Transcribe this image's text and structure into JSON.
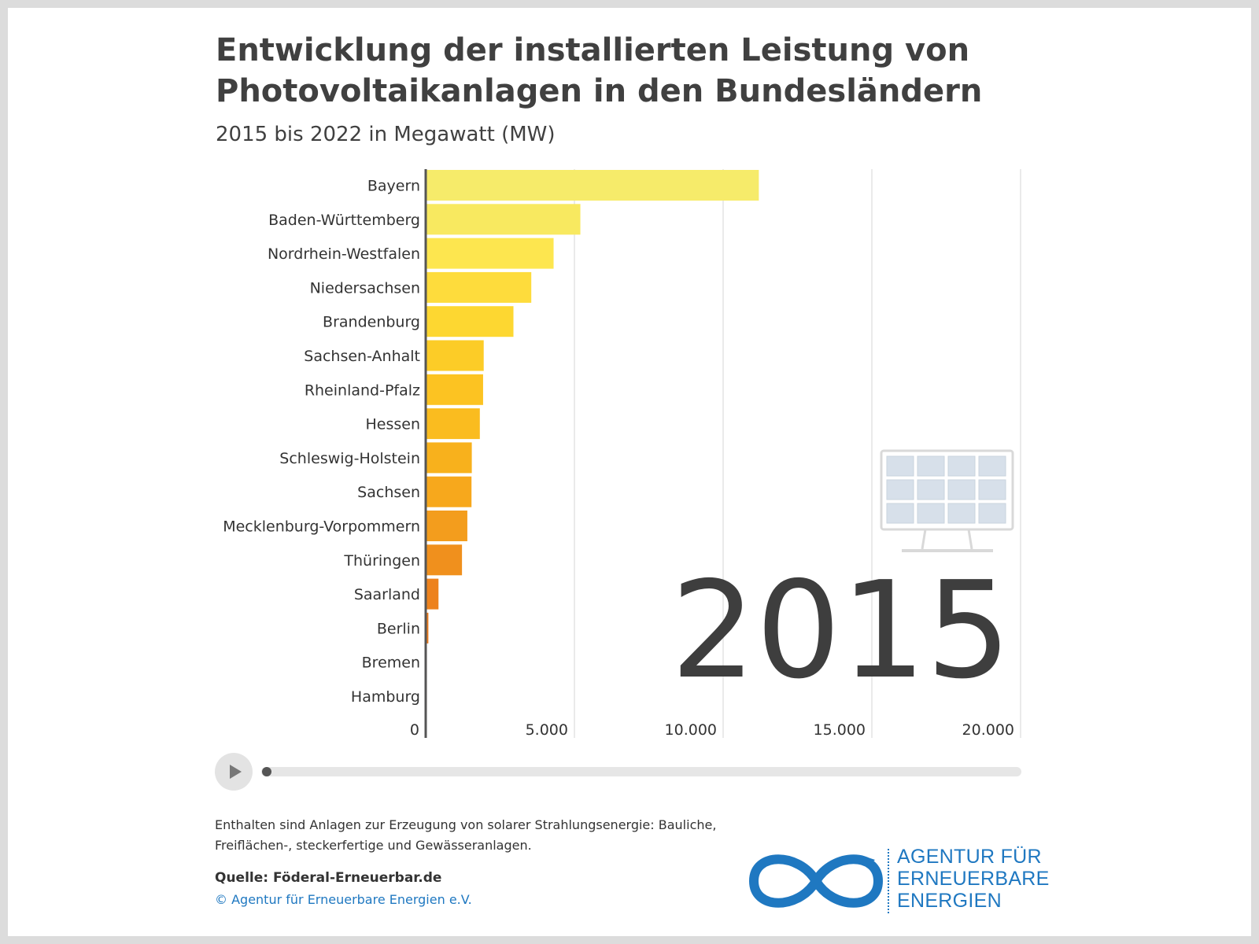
{
  "title": "Entwicklung der installierten Leistung von Photovoltaikanlagen in den Bundesländern",
  "subtitle": "2015 bis 2022 in Megawatt (MW)",
  "year_display": "2015",
  "player": {
    "progress": 0
  },
  "footnote": "Enthalten sind Anlagen zur Erzeugung von solarer Strahlungsenergie: Bauliche, Freiflächen-, steckerfertige und Gewässeranlagen.",
  "source": "Quelle: Föderal-Erneuerbar.de",
  "copyright": "© Agentur für Erneuerbare Energien e.V.",
  "logo": {
    "line1": "AGENTUR FÜR",
    "line2": "ERNEUERBARE",
    "line3": "ENERGIEN",
    "color": "#1f78c1"
  },
  "icons": [
    "play-icon",
    "solar-panel-icon",
    "infinity-logo-icon"
  ],
  "chart_data": {
    "type": "bar",
    "orientation": "horizontal",
    "title": "Entwicklung der installierten Leistung von Photovoltaikanlagen in den Bundesländern",
    "subtitle": "2015 bis 2022 in Megawatt (MW)",
    "categories": [
      "Bayern",
      "Baden-Württemberg",
      "Nordrhein-Westfalen",
      "Niedersachsen",
      "Brandenburg",
      "Sachsen-Anhalt",
      "Rheinland-Pfalz",
      "Hessen",
      "Schleswig-Holstein",
      "Sachsen",
      "Mecklenburg-Vorpommern",
      "Thüringen",
      "Saarland",
      "Berlin",
      "Bremen",
      "Hamburg"
    ],
    "values": [
      11200,
      5200,
      4300,
      3550,
      2950,
      1950,
      1930,
      1820,
      1550,
      1540,
      1400,
      1220,
      430,
      90,
      40,
      40
    ],
    "xlim": [
      0,
      20000
    ],
    "xticks": [
      0,
      5000,
      10000,
      15000,
      20000
    ],
    "xtick_labels": [
      "0",
      "5.000",
      "10.000",
      "15.000",
      "20.000"
    ],
    "grid": true,
    "bar_colors": [
      "#f6eb6a",
      "#f8e960",
      "#fde64f",
      "#fedc3c",
      "#fdd731",
      "#fccc27",
      "#fcc322",
      "#fabc1f",
      "#f8b11c",
      "#f7a81c",
      "#f39d1d",
      "#f0901d",
      "#ed821d",
      "#ea7a1d",
      "#e8761d",
      "#e6721d"
    ]
  }
}
